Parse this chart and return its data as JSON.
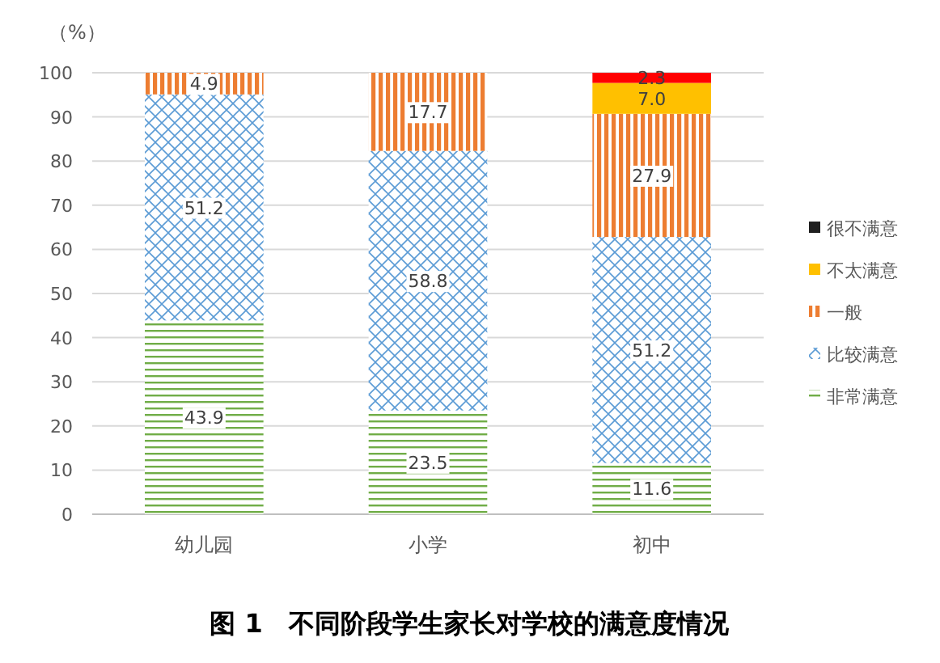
{
  "chart_data": {
    "type": "bar",
    "stacked": true,
    "title": "图 1　不同阶段学生家长对学校的满意度情况",
    "ylabel": "（%）",
    "categories": [
      "幼儿园",
      "小学",
      "初中"
    ],
    "series": [
      {
        "name": "非常满意",
        "color": "#70ad47",
        "values": [
          43.9,
          23.5,
          11.6
        ],
        "value_labels": [
          "43.9",
          "23.5",
          "11.6"
        ]
      },
      {
        "name": "比较满意",
        "color": "#5b9bd5",
        "values": [
          51.2,
          58.8,
          51.2
        ],
        "value_labels": [
          "51.2",
          "58.8",
          "51.2"
        ]
      },
      {
        "name": "一般",
        "color": "#ed7d31",
        "values": [
          4.9,
          17.7,
          27.9
        ],
        "value_labels": [
          "4.9",
          "17.7",
          "27.9"
        ]
      },
      {
        "name": "不太满意",
        "color": "#ffc000",
        "values": [
          0,
          0,
          7.0
        ],
        "value_labels": [
          null,
          null,
          "7.0"
        ]
      },
      {
        "name": "很不满意",
        "color": "#1f1f1f",
        "colors": [
          "#ff0000",
          "#ff0000",
          "#ff0000"
        ],
        "values": [
          0,
          0,
          2.3
        ],
        "value_labels": [
          null,
          null,
          "2.3"
        ]
      }
    ],
    "ylim": [
      0,
      100
    ],
    "yticks": [
      0,
      10,
      20,
      30,
      40,
      50,
      60,
      70,
      80,
      90,
      100
    ],
    "grid": "y",
    "legend": "right"
  }
}
